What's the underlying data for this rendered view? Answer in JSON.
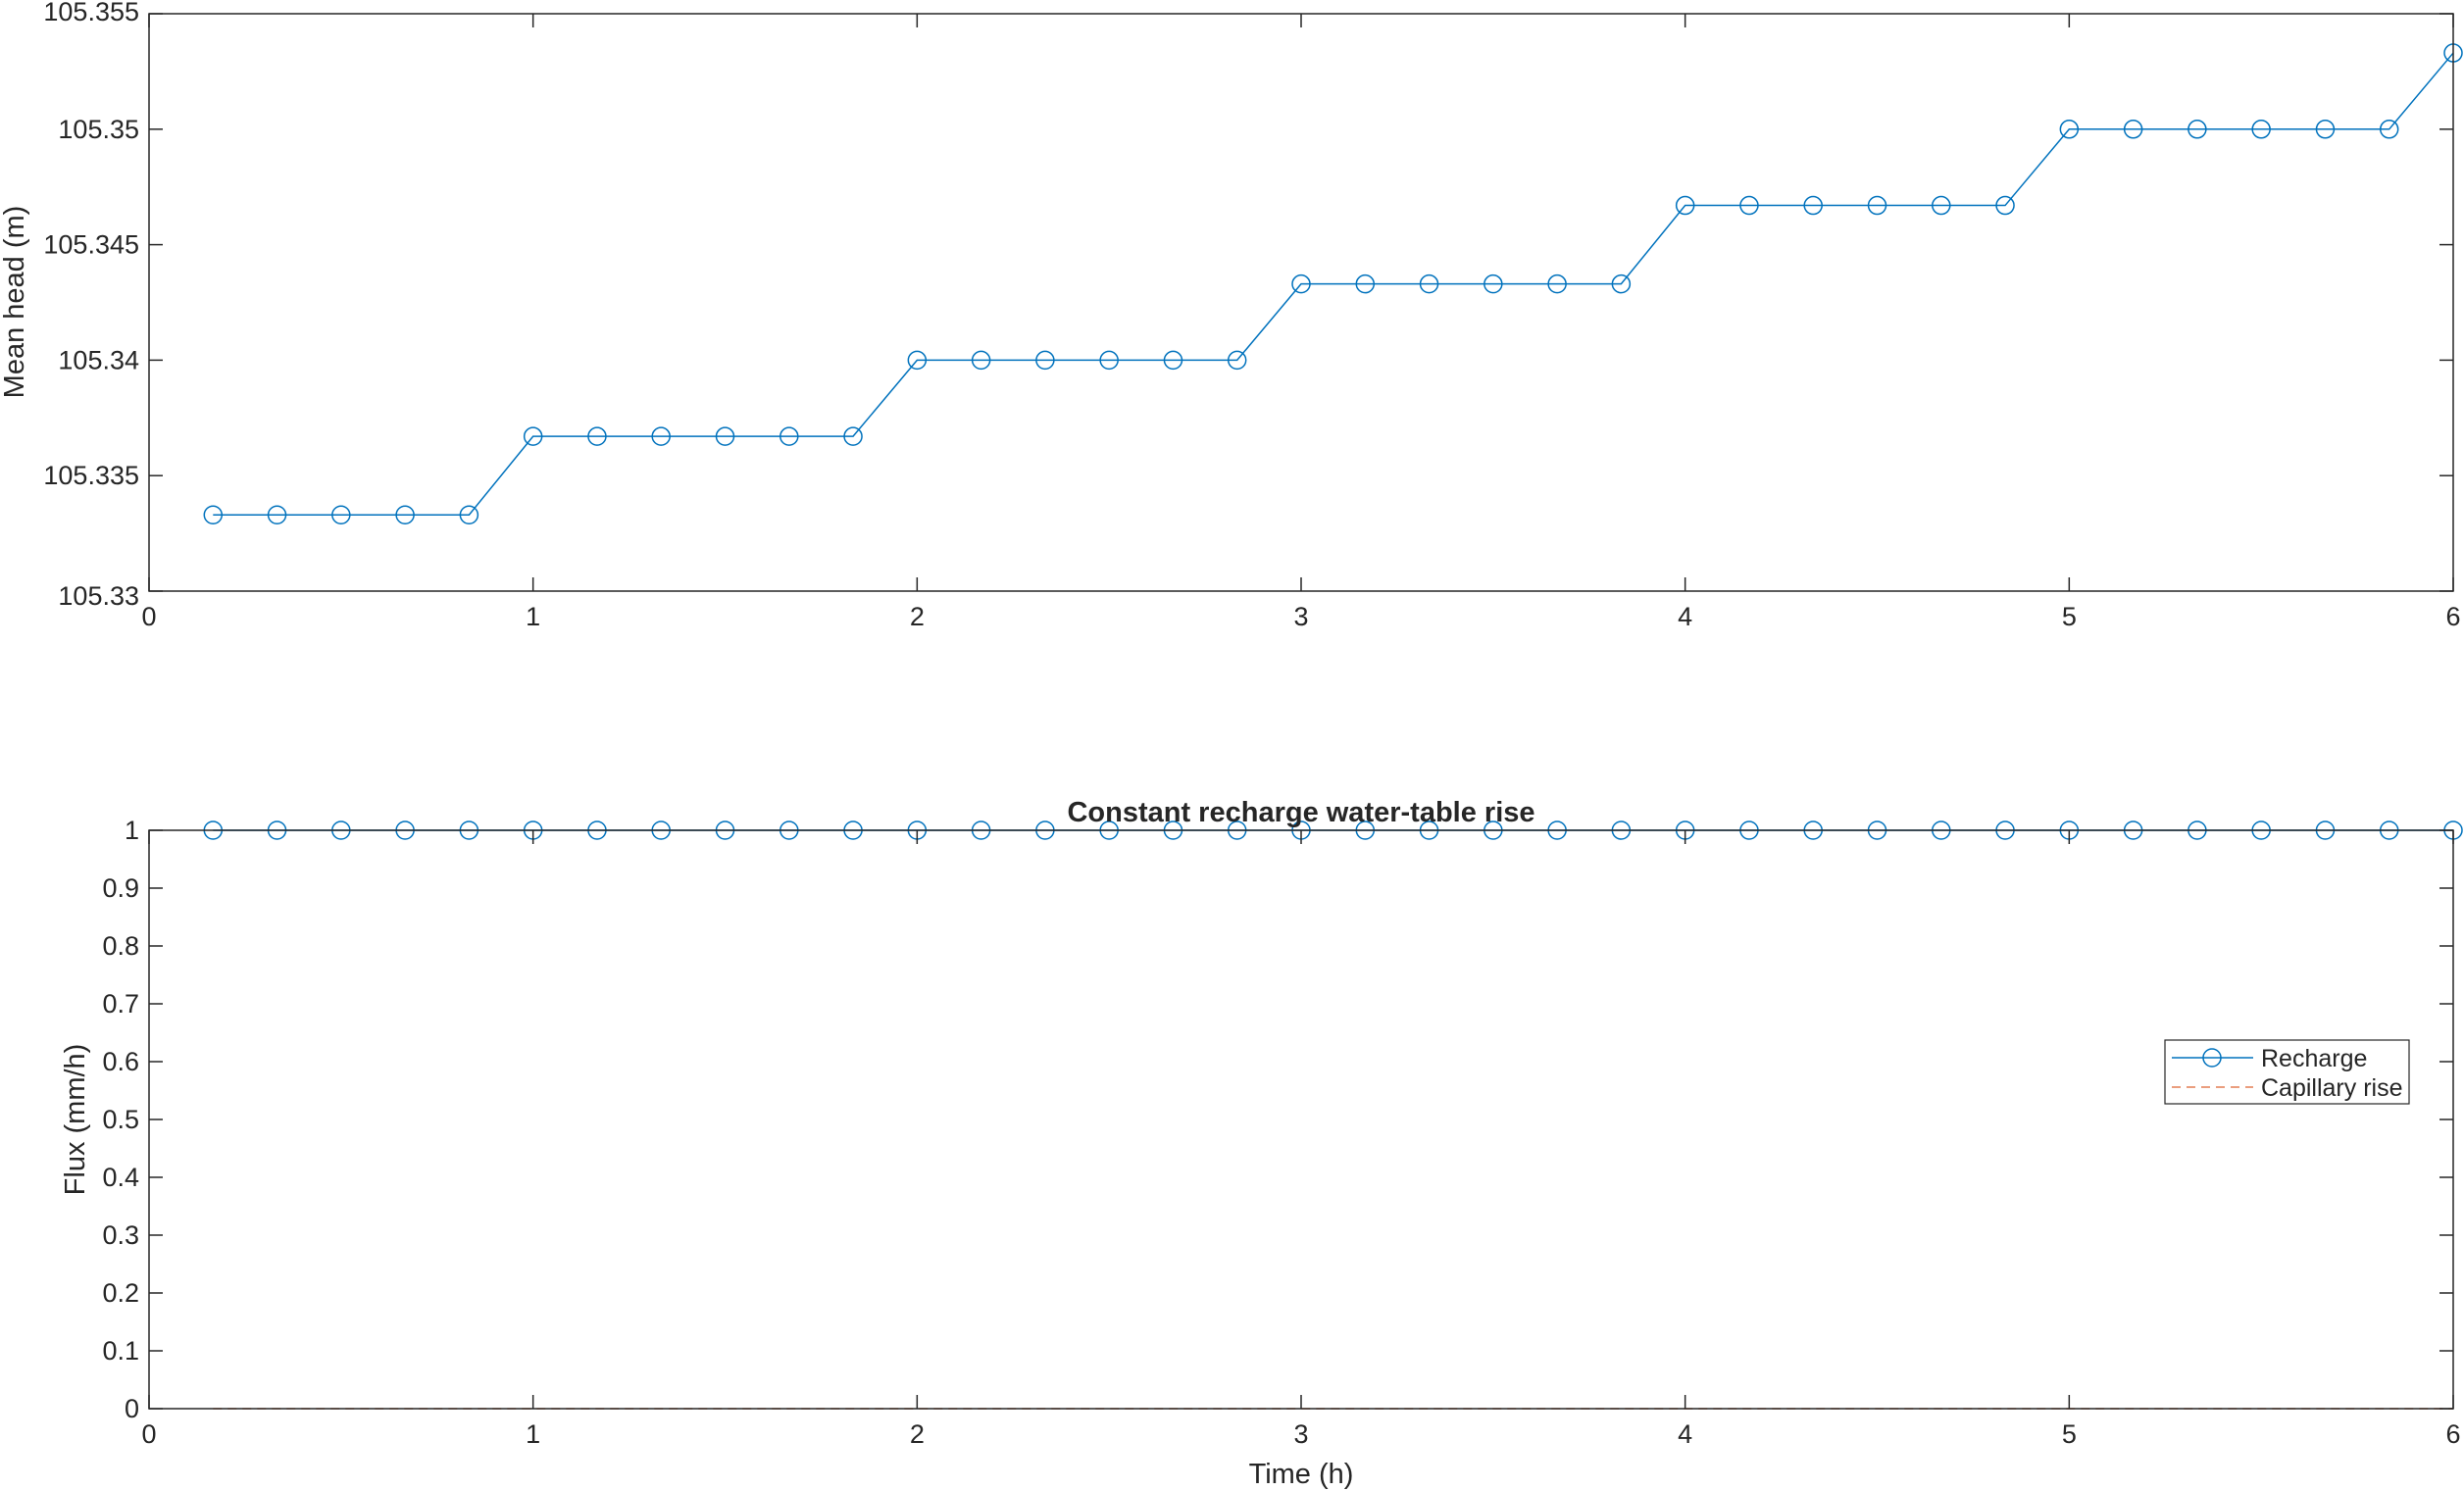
{
  "chart_data": [
    {
      "type": "line",
      "title": "",
      "xlabel": "",
      "ylabel": "Mean head (m)",
      "xlim": [
        0,
        6
      ],
      "ylim": [
        105.33,
        105.355
      ],
      "xticks": [
        0,
        1,
        2,
        3,
        4,
        5,
        6
      ],
      "xtick_labels": [
        "0",
        "1",
        "2",
        "3",
        "4",
        "5",
        "6"
      ],
      "yticks": [
        105.33,
        105.335,
        105.34,
        105.345,
        105.35,
        105.355
      ],
      "ytick_labels": [
        "105.33",
        "105.335",
        "105.34",
        "105.345",
        "105.35",
        "105.355"
      ],
      "grid": false,
      "series": [
        {
          "color": "#0072BD",
          "marker": "circle",
          "line_style": "solid",
          "x": [
            0.1667,
            0.3333,
            0.5,
            0.6667,
            0.8333,
            1.0,
            1.1667,
            1.3333,
            1.5,
            1.6667,
            1.8333,
            2.0,
            2.1667,
            2.3333,
            2.5,
            2.6667,
            2.8333,
            3.0,
            3.1667,
            3.3333,
            3.5,
            3.6667,
            3.8333,
            4.0,
            4.1667,
            4.3333,
            4.5,
            4.6667,
            4.8333,
            5.0,
            5.1667,
            5.3333,
            5.5,
            5.6667,
            5.8333,
            6.0
          ],
          "y": [
            105.3333,
            105.3333,
            105.3333,
            105.3333,
            105.3333,
            105.3367,
            105.3367,
            105.3367,
            105.3367,
            105.3367,
            105.3367,
            105.34,
            105.34,
            105.34,
            105.34,
            105.34,
            105.34,
            105.3433,
            105.3433,
            105.3433,
            105.3433,
            105.3433,
            105.3433,
            105.3467,
            105.3467,
            105.3467,
            105.3467,
            105.3467,
            105.3467,
            105.35,
            105.35,
            105.35,
            105.35,
            105.35,
            105.35,
            105.3533
          ]
        }
      ]
    },
    {
      "type": "line",
      "title": "Constant recharge water-table rise",
      "xlabel": "Time (h)",
      "ylabel": "Flux (mm/h)",
      "xlim": [
        0,
        6
      ],
      "ylim": [
        0,
        1
      ],
      "xticks": [
        0,
        1,
        2,
        3,
        4,
        5,
        6
      ],
      "xtick_labels": [
        "0",
        "1",
        "2",
        "3",
        "4",
        "5",
        "6"
      ],
      "yticks": [
        0,
        0.1,
        0.2,
        0.3,
        0.4,
        0.5,
        0.6,
        0.7,
        0.8,
        0.9,
        1
      ],
      "ytick_labels": [
        "0",
        "0.1",
        "0.2",
        "0.3",
        "0.4",
        "0.5",
        "0.6",
        "0.7",
        "0.8",
        "0.9",
        "1"
      ],
      "grid": false,
      "legend_position": "right",
      "series": [
        {
          "name": "Recharge",
          "color": "#0072BD",
          "marker": "circle",
          "line_style": "solid",
          "x": [
            0.1667,
            0.3333,
            0.5,
            0.6667,
            0.8333,
            1.0,
            1.1667,
            1.3333,
            1.5,
            1.6667,
            1.8333,
            2.0,
            2.1667,
            2.3333,
            2.5,
            2.6667,
            2.8333,
            3.0,
            3.1667,
            3.3333,
            3.5,
            3.6667,
            3.8333,
            4.0,
            4.1667,
            4.3333,
            4.5,
            4.6667,
            4.8333,
            5.0,
            5.1667,
            5.3333,
            5.5,
            5.6667,
            5.8333,
            6.0
          ],
          "y": [
            1,
            1,
            1,
            1,
            1,
            1,
            1,
            1,
            1,
            1,
            1,
            1,
            1,
            1,
            1,
            1,
            1,
            1,
            1,
            1,
            1,
            1,
            1,
            1,
            1,
            1,
            1,
            1,
            1,
            1,
            1,
            1,
            1,
            1,
            1,
            1
          ]
        },
        {
          "name": "Capillary rise",
          "color": "#D95319",
          "marker": "none",
          "line_style": "dashed",
          "x": [
            0.1667,
            6.0
          ],
          "y": [
            0,
            0
          ]
        }
      ]
    }
  ]
}
